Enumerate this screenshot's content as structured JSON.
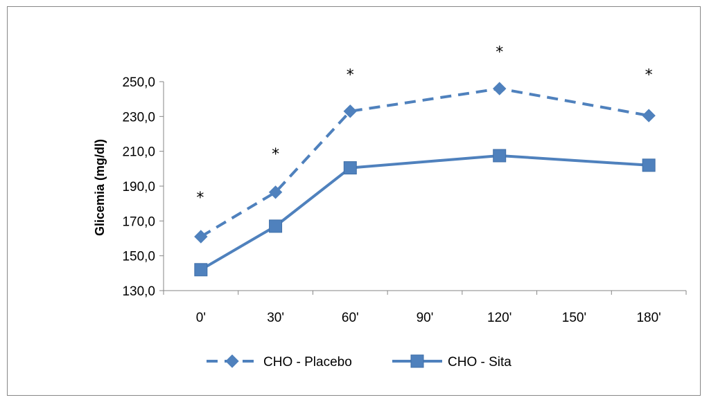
{
  "chart_data": {
    "type": "line",
    "title": "",
    "xlabel": "",
    "ylabel": "Glicemia (mg/dl)",
    "categories": [
      "0'",
      "30'",
      "60'",
      "90'",
      "120'",
      "150'",
      "180'"
    ],
    "ylim": [
      130,
      250
    ],
    "yticks": [
      "130,0",
      "150,0",
      "170,0",
      "190,0",
      "210,0",
      "230,0",
      "250,0"
    ],
    "ytick_values": [
      130,
      150,
      170,
      190,
      210,
      230,
      250
    ],
    "grid": false,
    "legend_position": "bottom",
    "series": [
      {
        "name": "CHO - Placebo",
        "style": "dashed",
        "marker": "diamond",
        "color": "#4f81bd",
        "values": [
          161,
          186.5,
          233,
          null,
          246,
          null,
          230.5
        ]
      },
      {
        "name": "CHO - Sita",
        "style": "solid",
        "marker": "square",
        "color": "#4f81bd",
        "values": [
          142,
          167,
          200.5,
          null,
          207.5,
          null,
          202
        ]
      }
    ],
    "annotations": [
      {
        "category": "0'",
        "text": "*"
      },
      {
        "category": "30'",
        "text": "*"
      },
      {
        "category": "60'",
        "text": "*"
      },
      {
        "category": "120'",
        "text": "*"
      },
      {
        "category": "180'",
        "text": "*"
      }
    ]
  }
}
